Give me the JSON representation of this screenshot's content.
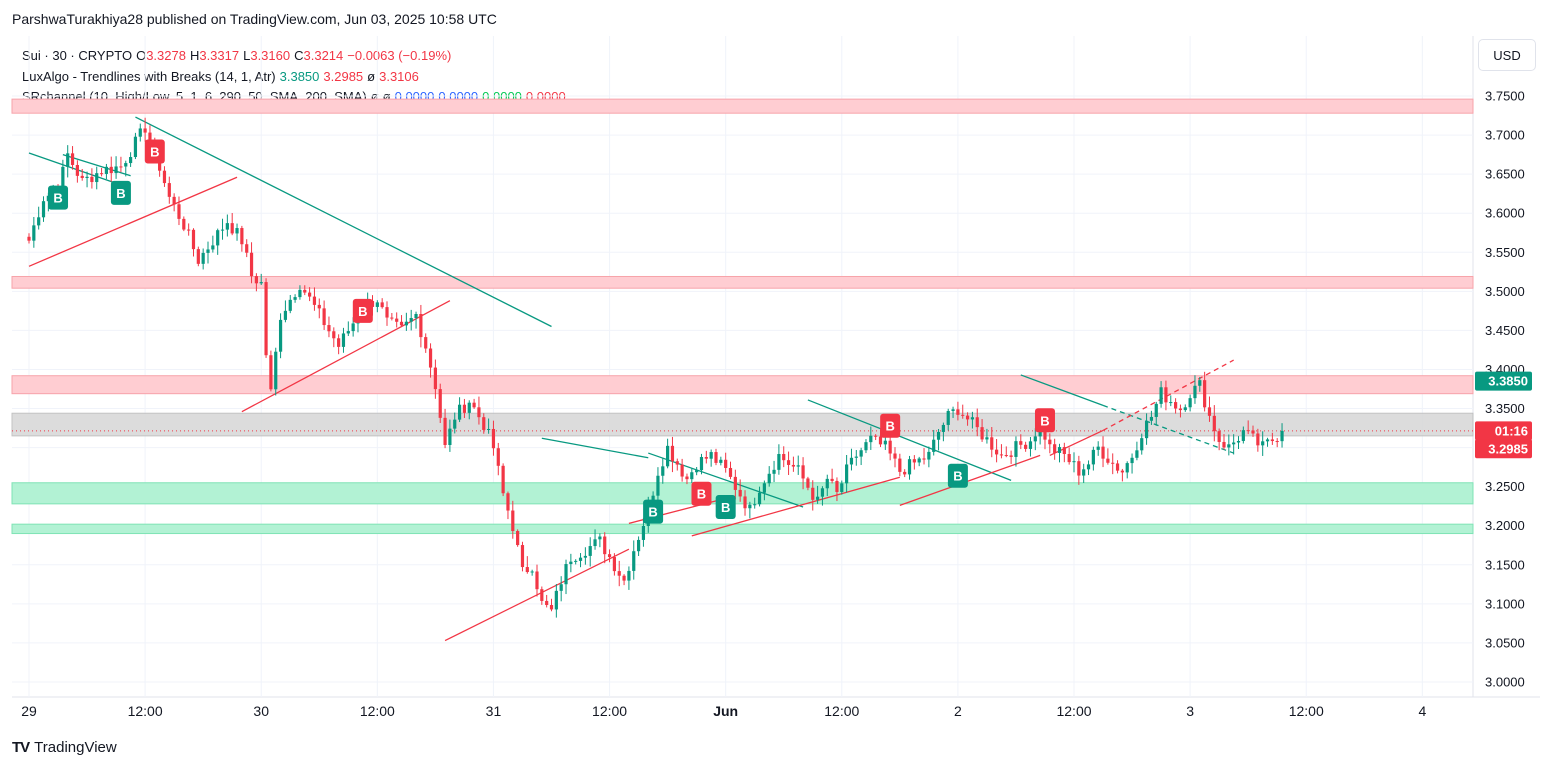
{
  "header": {
    "text": "ParshwaTurakhiya28 published on TradingView.com, Jun 03, 2025 10:58 UTC"
  },
  "legend": {
    "symbol": "Sui · 30 · CRYPTO",
    "o_label": "O",
    "o_value": "3.3278",
    "h_label": "H",
    "h_value": "3.3317",
    "l_label": "L",
    "l_value": "3.3160",
    "c_label": "C",
    "c_value": "3.3214",
    "change": "−0.0063 (−0.19%)",
    "ind1_name": "LuxAlgo - Trendlines with Breaks (14, 1, Atr)",
    "ind1_v1": "3.3850",
    "ind1_v2": "3.2985",
    "ind1_empty": "ø",
    "ind1_v3": "3.3106",
    "ind2_name": "SRchannel (10, High/Low, 5, 1, 6, 290, 50, SMA, 200, SMA)",
    "ind2_e1": "ø",
    "ind2_e2": "ø",
    "ind2_v1": "0.0000",
    "ind2_v2": "0.0000",
    "ind2_v3": "0.0000",
    "ind2_v4": "0.0000"
  },
  "currency_button": "USD",
  "footer": {
    "logo": "TV",
    "brand": "TradingView"
  },
  "colors": {
    "up": "#089981",
    "down": "#f23645",
    "resistance_zone": "#ffcdd2",
    "support_zone": "#b2f2d4",
    "neutral_zone": "#d7d7d7",
    "trend_up": "#f23645",
    "trend_down": "#089981"
  },
  "chart_data": {
    "type": "candlestick",
    "symbol": "Sui · 30 · CRYPTO",
    "ylim": [
      2.985,
      3.765
    ],
    "y_ticks": [
      "3.7500",
      "3.7000",
      "3.6500",
      "3.6000",
      "3.5500",
      "3.5000",
      "3.4500",
      "3.4000",
      "3.3500",
      "3.3000",
      "3.2500",
      "3.2000",
      "3.1500",
      "3.1000",
      "3.0500",
      "3.0000"
    ],
    "x_tick_labels": [
      "29",
      "12:00",
      "30",
      "12:00",
      "31",
      "12:00",
      "Jun",
      "12:00",
      "2",
      "12:00",
      "3",
      "12:00",
      "4"
    ],
    "x_tick_bars": [
      0,
      24,
      48,
      72,
      96,
      120,
      144,
      168,
      192,
      216,
      240,
      264,
      288
    ],
    "bar_count": 270,
    "price_labels": [
      {
        "text": "3.3850",
        "value": 3.385,
        "color": "#089981"
      },
      {
        "text": "01:16",
        "value": 3.3214,
        "color": "#f23645"
      },
      {
        "text": "3.2985",
        "value": 3.2985,
        "color": "#f23645"
      }
    ],
    "zones": [
      {
        "low": 3.728,
        "high": 3.746,
        "kind": "resistance"
      },
      {
        "low": 3.504,
        "high": 3.519,
        "kind": "resistance"
      },
      {
        "low": 3.369,
        "high": 3.392,
        "kind": "resistance"
      },
      {
        "low": 3.315,
        "high": 3.344,
        "kind": "neutral"
      },
      {
        "low": 3.228,
        "high": 3.255,
        "kind": "support"
      },
      {
        "low": 3.19,
        "high": 3.202,
        "kind": "support"
      }
    ],
    "anchors": [
      [
        0,
        3.565
      ],
      [
        3,
        3.62
      ],
      [
        6,
        3.63
      ],
      [
        8,
        3.675
      ],
      [
        11,
        3.64
      ],
      [
        15,
        3.655
      ],
      [
        19,
        3.66
      ],
      [
        24,
        3.71
      ],
      [
        26,
        3.68
      ],
      [
        29,
        3.62
      ],
      [
        32,
        3.585
      ],
      [
        35,
        3.54
      ],
      [
        38,
        3.565
      ],
      [
        41,
        3.59
      ],
      [
        44,
        3.565
      ],
      [
        46,
        3.52
      ],
      [
        48,
        3.51
      ],
      [
        49,
        3.42
      ],
      [
        50,
        3.37
      ],
      [
        52,
        3.47
      ],
      [
        54,
        3.49
      ],
      [
        56,
        3.51
      ],
      [
        59,
        3.48
      ],
      [
        61,
        3.46
      ],
      [
        64,
        3.43
      ],
      [
        66,
        3.45
      ],
      [
        69,
        3.48
      ],
      [
        72,
        3.49
      ],
      [
        74,
        3.46
      ],
      [
        77,
        3.45
      ],
      [
        80,
        3.47
      ],
      [
        82,
        3.43
      ],
      [
        84,
        3.38
      ],
      [
        86,
        3.3
      ],
      [
        88,
        3.34
      ],
      [
        91,
        3.36
      ],
      [
        94,
        3.33
      ],
      [
        96,
        3.3
      ],
      [
        98,
        3.24
      ],
      [
        100,
        3.2
      ],
      [
        102,
        3.14
      ],
      [
        104,
        3.15
      ],
      [
        106,
        3.1
      ],
      [
        108,
        3.09
      ],
      [
        110,
        3.13
      ],
      [
        112,
        3.16
      ],
      [
        115,
        3.17
      ],
      [
        118,
        3.18
      ],
      [
        121,
        3.15
      ],
      [
        123,
        3.13
      ],
      [
        125,
        3.17
      ],
      [
        128,
        3.22
      ],
      [
        130,
        3.27
      ],
      [
        132,
        3.3
      ],
      [
        134,
        3.28
      ],
      [
        136,
        3.26
      ],
      [
        138,
        3.28
      ],
      [
        141,
        3.29
      ],
      [
        144,
        3.27
      ],
      [
        147,
        3.24
      ],
      [
        149,
        3.22
      ],
      [
        151,
        3.25
      ],
      [
        153,
        3.27
      ],
      [
        155,
        3.29
      ],
      [
        157,
        3.28
      ],
      [
        159,
        3.27
      ],
      [
        161,
        3.25
      ],
      [
        163,
        3.23
      ],
      [
        165,
        3.26
      ],
      [
        167,
        3.24
      ],
      [
        169,
        3.27
      ],
      [
        171,
        3.29
      ],
      [
        174,
        3.31
      ],
      [
        177,
        3.3
      ],
      [
        180,
        3.27
      ],
      [
        183,
        3.28
      ],
      [
        186,
        3.29
      ],
      [
        188,
        3.32
      ],
      [
        190,
        3.34
      ],
      [
        192,
        3.35
      ],
      [
        195,
        3.33
      ],
      [
        198,
        3.31
      ],
      [
        201,
        3.29
      ],
      [
        204,
        3.3
      ],
      [
        207,
        3.31
      ],
      [
        209,
        3.33
      ],
      [
        211,
        3.3
      ],
      [
        214,
        3.29
      ],
      [
        217,
        3.27
      ],
      [
        219,
        3.28
      ],
      [
        221,
        3.3
      ],
      [
        224,
        3.28
      ],
      [
        226,
        3.27
      ],
      [
        228,
        3.29
      ],
      [
        230,
        3.32
      ],
      [
        232,
        3.34
      ],
      [
        234,
        3.37
      ],
      [
        236,
        3.36
      ],
      [
        238,
        3.35
      ],
      [
        240,
        3.37
      ],
      [
        242,
        3.38
      ],
      [
        244,
        3.34
      ],
      [
        246,
        3.31
      ],
      [
        248,
        3.3
      ],
      [
        251,
        3.32
      ],
      [
        253,
        3.31
      ],
      [
        255,
        3.3
      ],
      [
        257,
        3.31
      ],
      [
        259,
        3.3214
      ]
    ],
    "trendlines": [
      {
        "kind": "down",
        "from": [
          0,
          3.677
        ],
        "to": [
          20,
          3.634
        ]
      },
      {
        "kind": "up",
        "from": [
          0,
          3.532
        ],
        "to": [
          43,
          3.646
        ]
      },
      {
        "kind": "down",
        "from": [
          7,
          3.675
        ],
        "to": [
          21,
          3.648
        ]
      },
      {
        "kind": "down",
        "from": [
          22,
          3.723
        ],
        "to": [
          108,
          3.455
        ]
      },
      {
        "kind": "up",
        "from": [
          44,
          3.346
        ],
        "to": [
          87,
          3.488
        ]
      },
      {
        "kind": "up",
        "from": [
          86,
          3.053
        ],
        "to": [
          124,
          3.17
        ]
      },
      {
        "kind": "down",
        "from": [
          106,
          3.312
        ],
        "to": [
          128,
          3.287
        ]
      },
      {
        "kind": "up",
        "from": [
          124,
          3.203
        ],
        "to": [
          144,
          3.235
        ]
      },
      {
        "kind": "down",
        "from": [
          128,
          3.293
        ],
        "to": [
          160,
          3.224
        ]
      },
      {
        "kind": "up",
        "from": [
          137,
          3.187
        ],
        "to": [
          180,
          3.262
        ]
      },
      {
        "kind": "down",
        "from": [
          161,
          3.361
        ],
        "to": [
          203,
          3.258
        ]
      },
      {
        "kind": "up",
        "from": [
          180,
          3.226
        ],
        "to": [
          209,
          3.29
        ]
      },
      {
        "kind": "down",
        "from": [
          205,
          3.393
        ],
        "to": [
          222,
          3.354
        ]
      },
      {
        "kind": "up",
        "from": [
          211,
          3.29
        ],
        "to": [
          222,
          3.322
        ]
      },
      {
        "kind": "down",
        "from": [
          222,
          3.354
        ],
        "to": [
          249,
          3.293
        ],
        "dashed": true
      },
      {
        "kind": "up",
        "from": [
          222,
          3.322
        ],
        "to": [
          249,
          3.412
        ],
        "dashed": true
      }
    ],
    "markers": [
      {
        "bar": 6,
        "value": 3.62,
        "color": "#089981"
      },
      {
        "bar": 19,
        "value": 3.626,
        "color": "#089981"
      },
      {
        "bar": 26,
        "value": 3.679,
        "color": "#f23645"
      },
      {
        "bar": 69,
        "value": 3.475,
        "color": "#f23645"
      },
      {
        "bar": 129,
        "value": 3.218,
        "color": "#089981"
      },
      {
        "bar": 139,
        "value": 3.241,
        "color": "#f23645"
      },
      {
        "bar": 144,
        "value": 3.224,
        "color": "#089981"
      },
      {
        "bar": 178,
        "value": 3.328,
        "color": "#f23645"
      },
      {
        "bar": 192,
        "value": 3.264,
        "color": "#089981"
      },
      {
        "bar": 210,
        "value": 3.335,
        "color": "#f23645"
      }
    ],
    "marker_label": "B"
  }
}
